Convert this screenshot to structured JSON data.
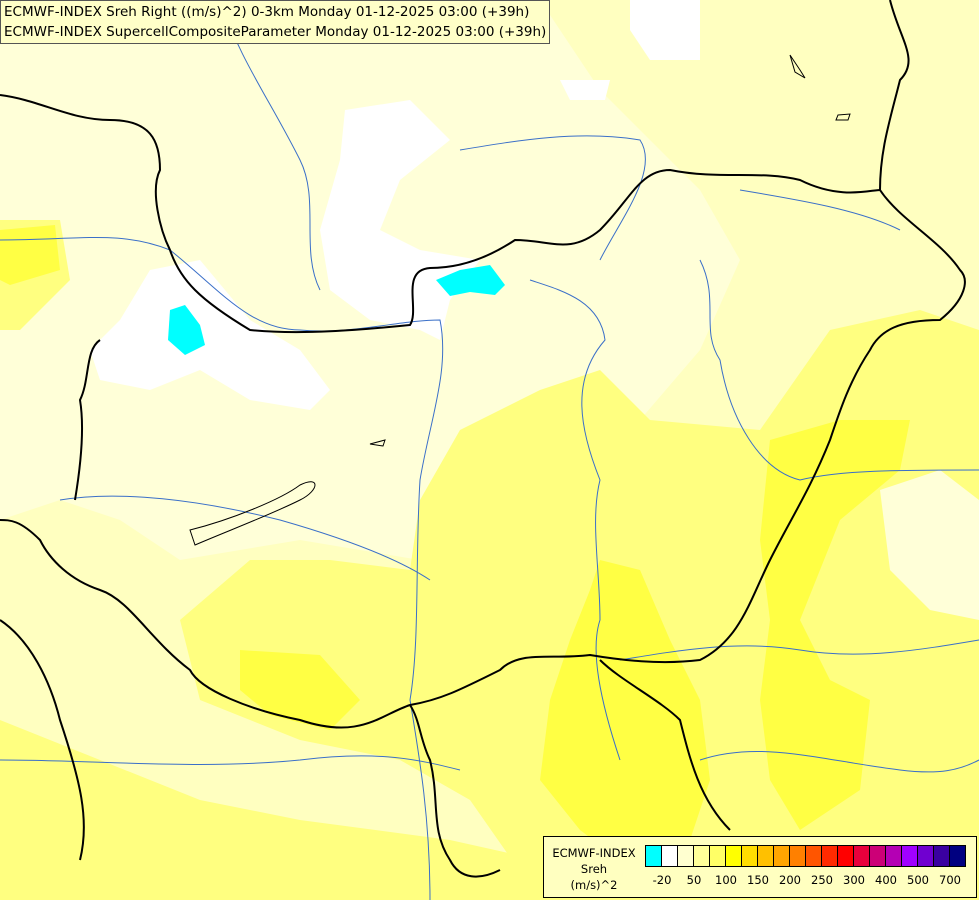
{
  "titles": [
    "ECMWF-INDEX Sreh Right ((m/s)^2) 0-3km Monday 01-12-2025 03:00 (+39h)",
    "ECMWF-INDEX SupercellCompositeParameter Monday 01-12-2025 03:00 (+39h)"
  ],
  "legend": {
    "line1": "ECMWF-INDEX",
    "line2": "Sreh",
    "line3": "(m/s)^2",
    "colors": [
      "#00ffff",
      "#ffffff",
      "#ffffd0",
      "#ffff99",
      "#ffff66",
      "#ffff00",
      "#ffdd00",
      "#ffc000",
      "#ffa500",
      "#ff8000",
      "#ff5500",
      "#ff2a00",
      "#ff0000",
      "#e8003c",
      "#cc0077",
      "#b400b4",
      "#a000ff",
      "#7000d0",
      "#3a00a0",
      "#000080"
    ],
    "ticks": [
      "-20",
      "50",
      "100",
      "150",
      "200",
      "250",
      "300",
      "400",
      "500",
      "700"
    ]
  },
  "map_colors": {
    "background": "#ffffc0",
    "light": "#ffffd8",
    "white": "#ffffff",
    "yellow": "#ffff80",
    "strong_yellow": "#ffff44",
    "negative": "#00ffff",
    "border": "#000000",
    "river": "#3a6fc8"
  }
}
